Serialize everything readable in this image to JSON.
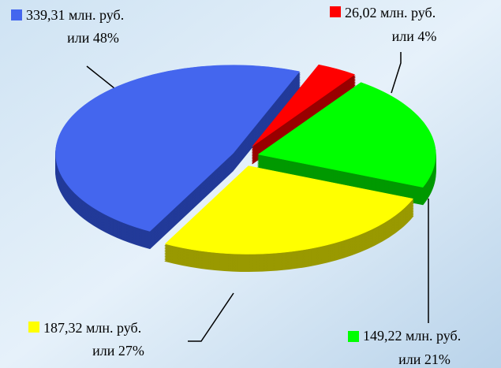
{
  "chart_data": {
    "type": "pie3d",
    "categories": [
      null,
      null,
      null,
      null
    ],
    "values": [
      26.02,
      149.22,
      187.32,
      339.31
    ],
    "value_labels": [
      "26,02 млн. руб.",
      "149,22 млн. руб.",
      "187,32 млн. руб.",
      "339,31 млн. руб."
    ],
    "shares": [
      4,
      21,
      27,
      48
    ],
    "share_labels": [
      "или 4%",
      "или 21%",
      "или 27%",
      "или 48%"
    ],
    "colors": [
      "#ff0000",
      "#00ff00",
      "#ffff00",
      "#4466ee"
    ],
    "side_colors": [
      "#990000",
      "#009900",
      "#999900",
      "#223a99"
    ]
  }
}
